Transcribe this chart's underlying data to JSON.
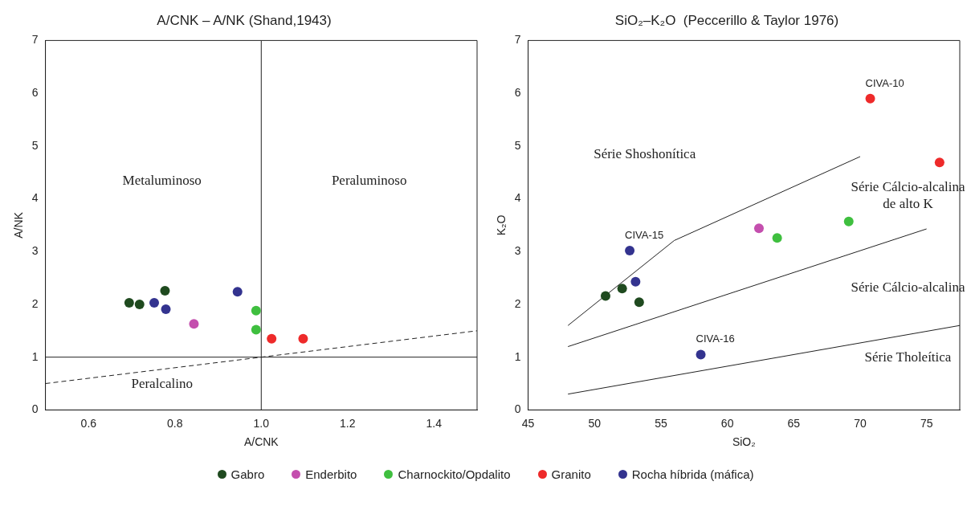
{
  "chart_data": [
    {
      "type": "scatter",
      "title": "A/CNK – A/NK (Shand,1943)",
      "xlabel": "A/CNK",
      "ylabel": "A/NK",
      "xlim": [
        0.5,
        1.5
      ],
      "ylim": [
        0,
        7
      ],
      "xticks": [
        {
          "value": 0.6,
          "label": "0.6"
        },
        {
          "value": 0.8,
          "label": "0.8"
        },
        {
          "value": 1.0,
          "label": "1.0"
        },
        {
          "value": 1.2,
          "label": "1.2"
        },
        {
          "value": 1.4,
          "label": "1.4"
        }
      ],
      "yticks": [
        0,
        1,
        2,
        3,
        4,
        5,
        6,
        7
      ],
      "grid": false,
      "legend": "bottom",
      "marker": "circle",
      "series": [
        {
          "name": "Gabro",
          "color": "#1f4a1f",
          "x": [
            0.694,
            0.718,
            0.777
          ],
          "values": [
            2.03,
            2.0,
            2.26
          ]
        },
        {
          "name": "Enderbito",
          "color": "#c44fae",
          "x": [
            0.844
          ],
          "values": [
            1.63
          ]
        },
        {
          "name": "Charnockito/Opdalito",
          "color": "#3fbf3f",
          "x": [
            0.988,
            0.988
          ],
          "values": [
            1.88,
            1.52
          ]
        },
        {
          "name": "Granito",
          "color": "#ee2a2a",
          "x": [
            1.024,
            1.097
          ],
          "values": [
            1.35,
            1.35
          ]
        },
        {
          "name": "Rocha híbrida (máfica)",
          "color": "#33338f",
          "x": [
            0.752,
            0.779,
            0.945
          ],
          "values": [
            2.03,
            1.91,
            2.24
          ]
        },
        {
          "type": "line",
          "color": "#222222",
          "marker": "none",
          "line_style": "dashed",
          "x": [
            0.5,
            1.5
          ],
          "values": [
            0.5,
            1.5
          ]
        },
        {
          "type": "line",
          "color": "#222222",
          "marker": "none",
          "x": [
            1.0,
            1.0
          ],
          "values": [
            0,
            7
          ]
        },
        {
          "type": "line",
          "color": "#222222",
          "marker": "none",
          "x": [
            0.5,
            1.5
          ],
          "values": [
            1,
            1
          ]
        }
      ],
      "annotations": [
        "Metaluminoso",
        "Peraluminoso",
        "Peralcalino"
      ]
    },
    {
      "type": "scatter",
      "title": "SiO₂–K₂O  (Peccerillo & Taylor 1976)",
      "xlabel": "SiO₂",
      "ylabel": "K₂O",
      "xlim": [
        45,
        77.5
      ],
      "ylim": [
        0,
        7
      ],
      "xticks": [
        45,
        50,
        55,
        60,
        65,
        70,
        75
      ],
      "yticks": [
        0,
        1,
        2,
        3,
        4,
        5,
        6,
        7
      ],
      "grid": false,
      "marker": "circle",
      "series": [
        {
          "color": "#1f4a1f",
          "x": [
            50.83,
            52.08,
            53.36
          ],
          "values": [
            2.16,
            2.3,
            2.04
          ]
        },
        {
          "color": "#c44fae",
          "x": [
            62.38
          ],
          "values": [
            3.44
          ]
        },
        {
          "color": "#3fbf3f",
          "x": [
            63.75,
            69.14
          ],
          "values": [
            3.26,
            3.57
          ]
        },
        {
          "color": "#ee2a2a",
          "x": [
            70.76,
            75.98
          ],
          "values": [
            5.9,
            4.69
          ]
        },
        {
          "color": "#33338f",
          "x": [
            52.65,
            53.09,
            58.0
          ],
          "values": [
            3.02,
            2.43,
            1.05
          ]
        },
        {
          "type": "line",
          "color": "#222222",
          "marker": "none",
          "x": [
            48,
            56,
            70
          ],
          "values": [
            1.6,
            3.21,
            4.8
          ]
        },
        {
          "type": "line",
          "color": "#222222",
          "marker": "none",
          "x": [
            48,
            75
          ],
          "values": [
            1.2,
            3.43
          ]
        },
        {
          "type": "line",
          "color": "#222222",
          "marker": "none",
          "x": [
            48,
            77.5
          ],
          "values": [
            0.3,
            1.6
          ]
        }
      ],
      "annotations": [
        {
          "text": "CIVA-10",
          "x": 70.76,
          "y": 5.9
        },
        {
          "text": "CIVA-15",
          "x": 52.65,
          "y": 3.02
        },
        {
          "text": "CIVA-16",
          "x": 58.0,
          "y": 1.05
        },
        "Série Shoshonítica",
        "Série Cálcio-alcalina\nde alto K",
        "Série Cálcio-alcalina",
        "Série Tholeítica"
      ]
    }
  ]
}
